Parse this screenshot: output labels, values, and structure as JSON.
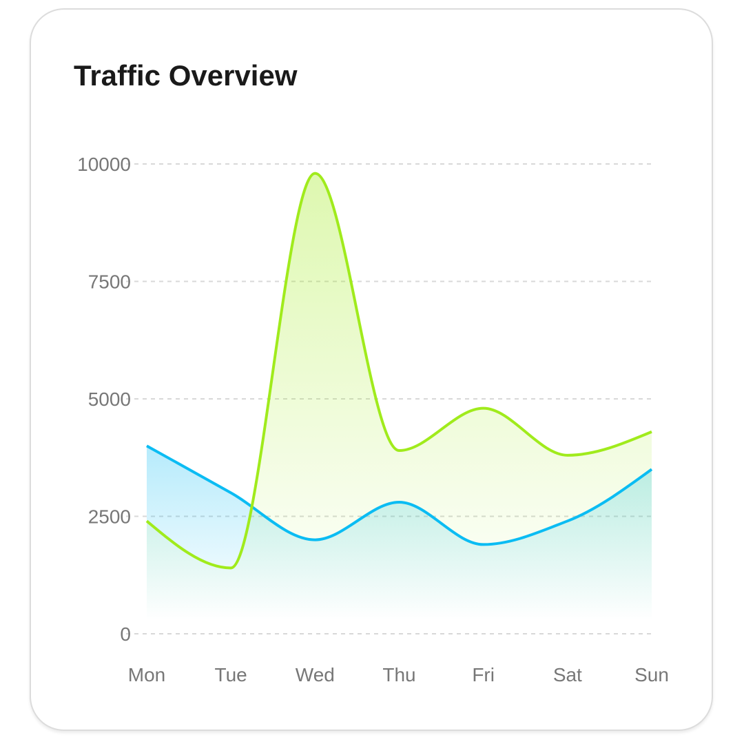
{
  "chart_data": {
    "type": "area",
    "title": "Traffic Overview",
    "categories": [
      "Mon",
      "Tue",
      "Wed",
      "Thu",
      "Fri",
      "Sat",
      "Sun"
    ],
    "ylim": [
      0,
      10000
    ],
    "yticks": [
      0,
      2500,
      5000,
      7500,
      10000
    ],
    "grid": true,
    "series": [
      {
        "color": "#0bbcf3",
        "values": [
          4000,
          3000,
          2000,
          2800,
          1900,
          2400,
          3500
        ]
      },
      {
        "color": "#a0eb1c",
        "values": [
          2400,
          1400,
          9800,
          3900,
          4800,
          3800,
          4300
        ]
      }
    ]
  }
}
